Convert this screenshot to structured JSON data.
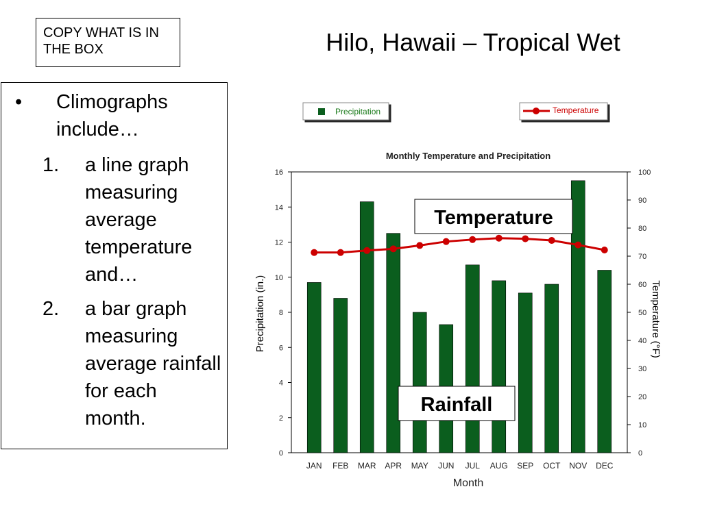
{
  "copy_box": {
    "text": "COPY WHAT IS IN THE BOX"
  },
  "slide_title": "Hilo, Hawaii – Tropical Wet",
  "notes": {
    "bullet_symbol": "•",
    "intro": "Climographs include…",
    "items": [
      {
        "number": "1.",
        "text": "a line graph measuring average temperature and…"
      },
      {
        "number": "2.",
        "text": "a bar graph measuring average rainfall for each month."
      }
    ]
  },
  "callouts": {
    "temperature": "Temperature",
    "rainfall": "Rainfall"
  },
  "colors": {
    "bars": "#0b5e1e",
    "line": "#cc0000",
    "legend_text_green": "#1a7a1a",
    "legend_text_red": "#cc0000"
  },
  "chart_data": {
    "type": "bar+line",
    "title": "Monthly Temperature and Precipitation",
    "xlabel": "Month",
    "ylabel_left": "Precipitation (in.)",
    "ylabel_right": "Temperature (°F)",
    "categories": [
      "JAN",
      "FEB",
      "MAR",
      "APR",
      "MAY",
      "JUN",
      "JUL",
      "AUG",
      "SEP",
      "OCT",
      "NOV",
      "DEC"
    ],
    "ylim_left": [
      0,
      16
    ],
    "yticks_left": [
      "0",
      "2",
      "4",
      "6",
      "8",
      "10",
      "12",
      "14",
      "16"
    ],
    "ylim_right": [
      0,
      100
    ],
    "yticks_right": [
      "0",
      "10",
      "20",
      "30",
      "40",
      "50",
      "60",
      "70",
      "80",
      "90",
      "100"
    ],
    "series": [
      {
        "name": "Precipitation",
        "type": "bar",
        "axis": "left",
        "values": [
          9.7,
          8.8,
          14.3,
          12.5,
          8.0,
          7.3,
          10.7,
          9.8,
          9.1,
          9.6,
          15.5,
          10.4
        ]
      },
      {
        "name": "Temperature",
        "type": "line",
        "axis": "right",
        "values": [
          71.3,
          71.3,
          72.0,
          72.6,
          73.8,
          75.2,
          75.9,
          76.4,
          76.2,
          75.6,
          74.0,
          72.2
        ]
      }
    ],
    "legend": [
      "Precipitation",
      "Temperature"
    ]
  }
}
